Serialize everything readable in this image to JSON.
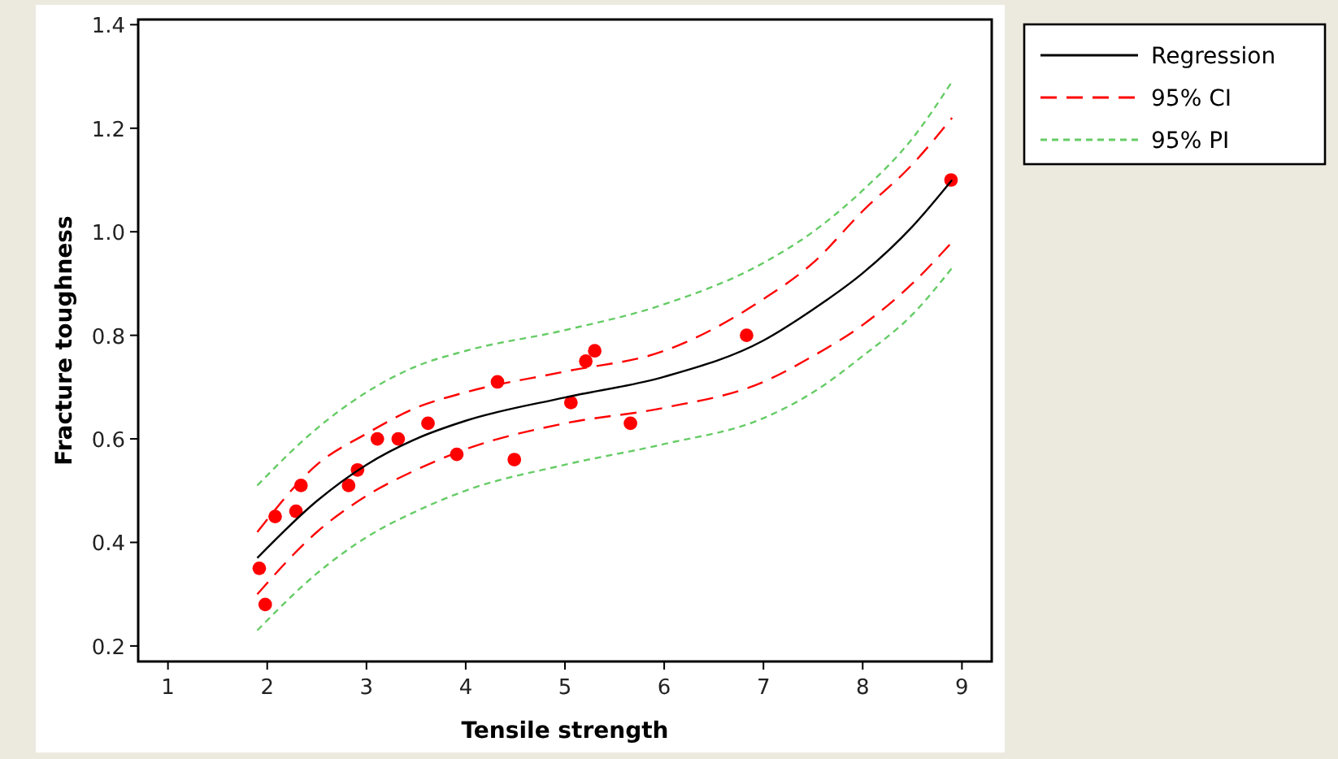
{
  "chart_data": {
    "type": "scatter",
    "xlabel": "Tensile strength",
    "ylabel": "Fracture toughness",
    "xlim": [
      0.7,
      9.3
    ],
    "ylim": [
      0.17,
      1.41
    ],
    "xticks": [
      1,
      2,
      3,
      4,
      5,
      6,
      7,
      8,
      9
    ],
    "yticks": [
      {
        "value": 0.2,
        "label": "0.2"
      },
      {
        "value": 0.4,
        "label": "0.4"
      },
      {
        "value": 0.6,
        "label": "0.6"
      },
      {
        "value": 0.8,
        "label": "0.8"
      },
      {
        "value": 1.0,
        "label": "1.0"
      },
      {
        "value": 1.2,
        "label": "1.2"
      },
      {
        "value": 1.4,
        "label": "1.4"
      }
    ],
    "legend": "top right",
    "grid": false,
    "series": [
      {
        "color": "#ff0000",
        "marker": "circle",
        "x": [
          1.92,
          1.98,
          2.08,
          2.29,
          2.34,
          2.82,
          2.91,
          3.11,
          3.32,
          3.62,
          3.91,
          4.32,
          4.49,
          5.06,
          5.21,
          5.3,
          5.66,
          6.83,
          8.89
        ],
        "values": [
          0.35,
          0.28,
          0.45,
          0.46,
          0.51,
          0.51,
          0.54,
          0.6,
          0.6,
          0.63,
          0.57,
          0.71,
          0.56,
          0.67,
          0.75,
          0.77,
          0.63,
          0.8,
          1.1
        ]
      },
      {
        "type": "line",
        "name": "Regression",
        "color": "#000000",
        "line_style": "solid",
        "x": [
          1.9,
          2.5,
          3,
          3.5,
          4,
          5,
          6,
          7,
          7.5,
          8,
          8.5,
          8.9
        ],
        "values": [
          0.37,
          0.48,
          0.55,
          0.6,
          0.635,
          0.68,
          0.72,
          0.79,
          0.85,
          0.92,
          1.01,
          1.1
        ]
      },
      {
        "type": "line",
        "name": "95% CI",
        "color": "#ff0000",
        "line_style": "dashed",
        "x": [
          1.9,
          2.5,
          3,
          3.5,
          4,
          5,
          6,
          7,
          7.5,
          8,
          8.5,
          8.9
        ],
        "values": [
          0.42,
          0.55,
          0.61,
          0.66,
          0.69,
          0.73,
          0.77,
          0.87,
          0.94,
          1.04,
          1.13,
          1.22
        ]
      },
      {
        "type": "line",
        "color": "#ff0000",
        "line_style": "dashed",
        "x": [
          1.9,
          2.5,
          3,
          3.5,
          4,
          5,
          6,
          7,
          7.5,
          8,
          8.5,
          8.9
        ],
        "values": [
          0.3,
          0.42,
          0.49,
          0.54,
          0.58,
          0.63,
          0.66,
          0.71,
          0.76,
          0.82,
          0.9,
          0.98
        ]
      },
      {
        "type": "line",
        "name": "95% PI",
        "color": "#66cc66",
        "line_style": "dotted",
        "x": [
          1.9,
          2.5,
          3,
          3.5,
          4,
          5,
          6,
          7,
          7.5,
          8,
          8.5,
          8.9
        ],
        "values": [
          0.51,
          0.62,
          0.69,
          0.74,
          0.77,
          0.81,
          0.86,
          0.94,
          1.0,
          1.08,
          1.18,
          1.29
        ]
      },
      {
        "type": "line",
        "color": "#66cc66",
        "line_style": "dotted",
        "x": [
          1.9,
          2.5,
          3,
          3.5,
          4,
          5,
          6,
          7,
          7.5,
          8,
          8.5,
          8.9
        ],
        "values": [
          0.23,
          0.34,
          0.41,
          0.46,
          0.5,
          0.55,
          0.59,
          0.64,
          0.69,
          0.76,
          0.84,
          0.93
        ]
      }
    ]
  }
}
